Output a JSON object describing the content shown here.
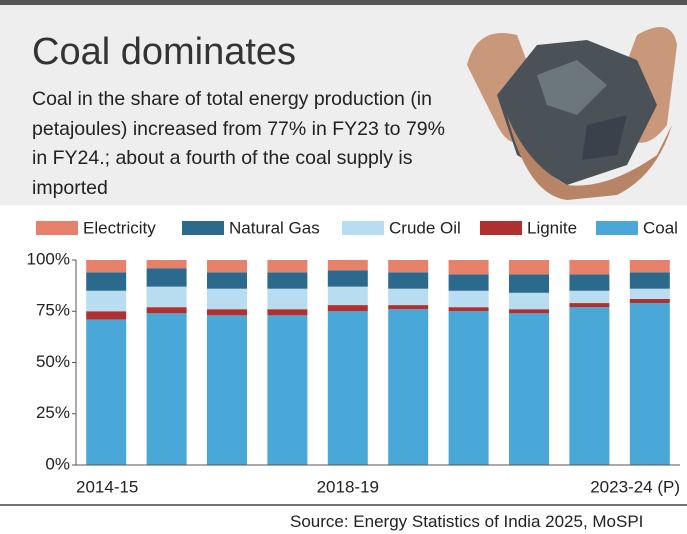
{
  "chart_data": {
    "type": "stacked_bar",
    "title": "Coal dominates",
    "subtitle": "Coal in the share of total energy production (in petajoules) increased from 77% in FY23 to 79% in FY24.; about a fourth of the coal supply is imported",
    "source": "Source: Energy Statistics of India 2025, MoSPI",
    "categories": [
      "2014-15",
      null,
      null,
      null,
      "2018-19",
      null,
      null,
      null,
      null,
      "2023-24 (P)"
    ],
    "series": [
      {
        "name": "Electricity",
        "color": "#e8816a",
        "values": [
          6,
          4,
          6,
          6,
          5,
          6,
          7,
          7,
          7,
          6
        ]
      },
      {
        "name": "Natural Gas",
        "color": "#2b6a8c",
        "values": [
          9,
          9,
          8,
          8,
          8,
          8,
          8,
          9,
          8,
          8
        ]
      },
      {
        "name": "Crude Oil",
        "color": "#b8ddf0",
        "values": [
          10,
          10,
          10,
          10,
          9,
          8,
          8,
          8,
          6,
          5
        ]
      },
      {
        "name": "Lignite",
        "color": "#b03030",
        "values": [
          4,
          3,
          3,
          3,
          3,
          2,
          2,
          2,
          2,
          2
        ]
      },
      {
        "name": "Coal",
        "color": "#4aa8d8",
        "values": [
          71,
          74,
          73,
          73,
          75,
          76,
          75,
          74,
          77,
          79
        ]
      }
    ],
    "ylim": [
      0,
      100
    ],
    "yticks": [
      {
        "value": 0,
        "label": "0%"
      },
      {
        "value": 25,
        "label": "25%"
      },
      {
        "value": 50,
        "label": "50%"
      },
      {
        "value": 75,
        "label": "75%"
      },
      {
        "value": 100,
        "label": "100%"
      }
    ],
    "legend": "top"
  }
}
